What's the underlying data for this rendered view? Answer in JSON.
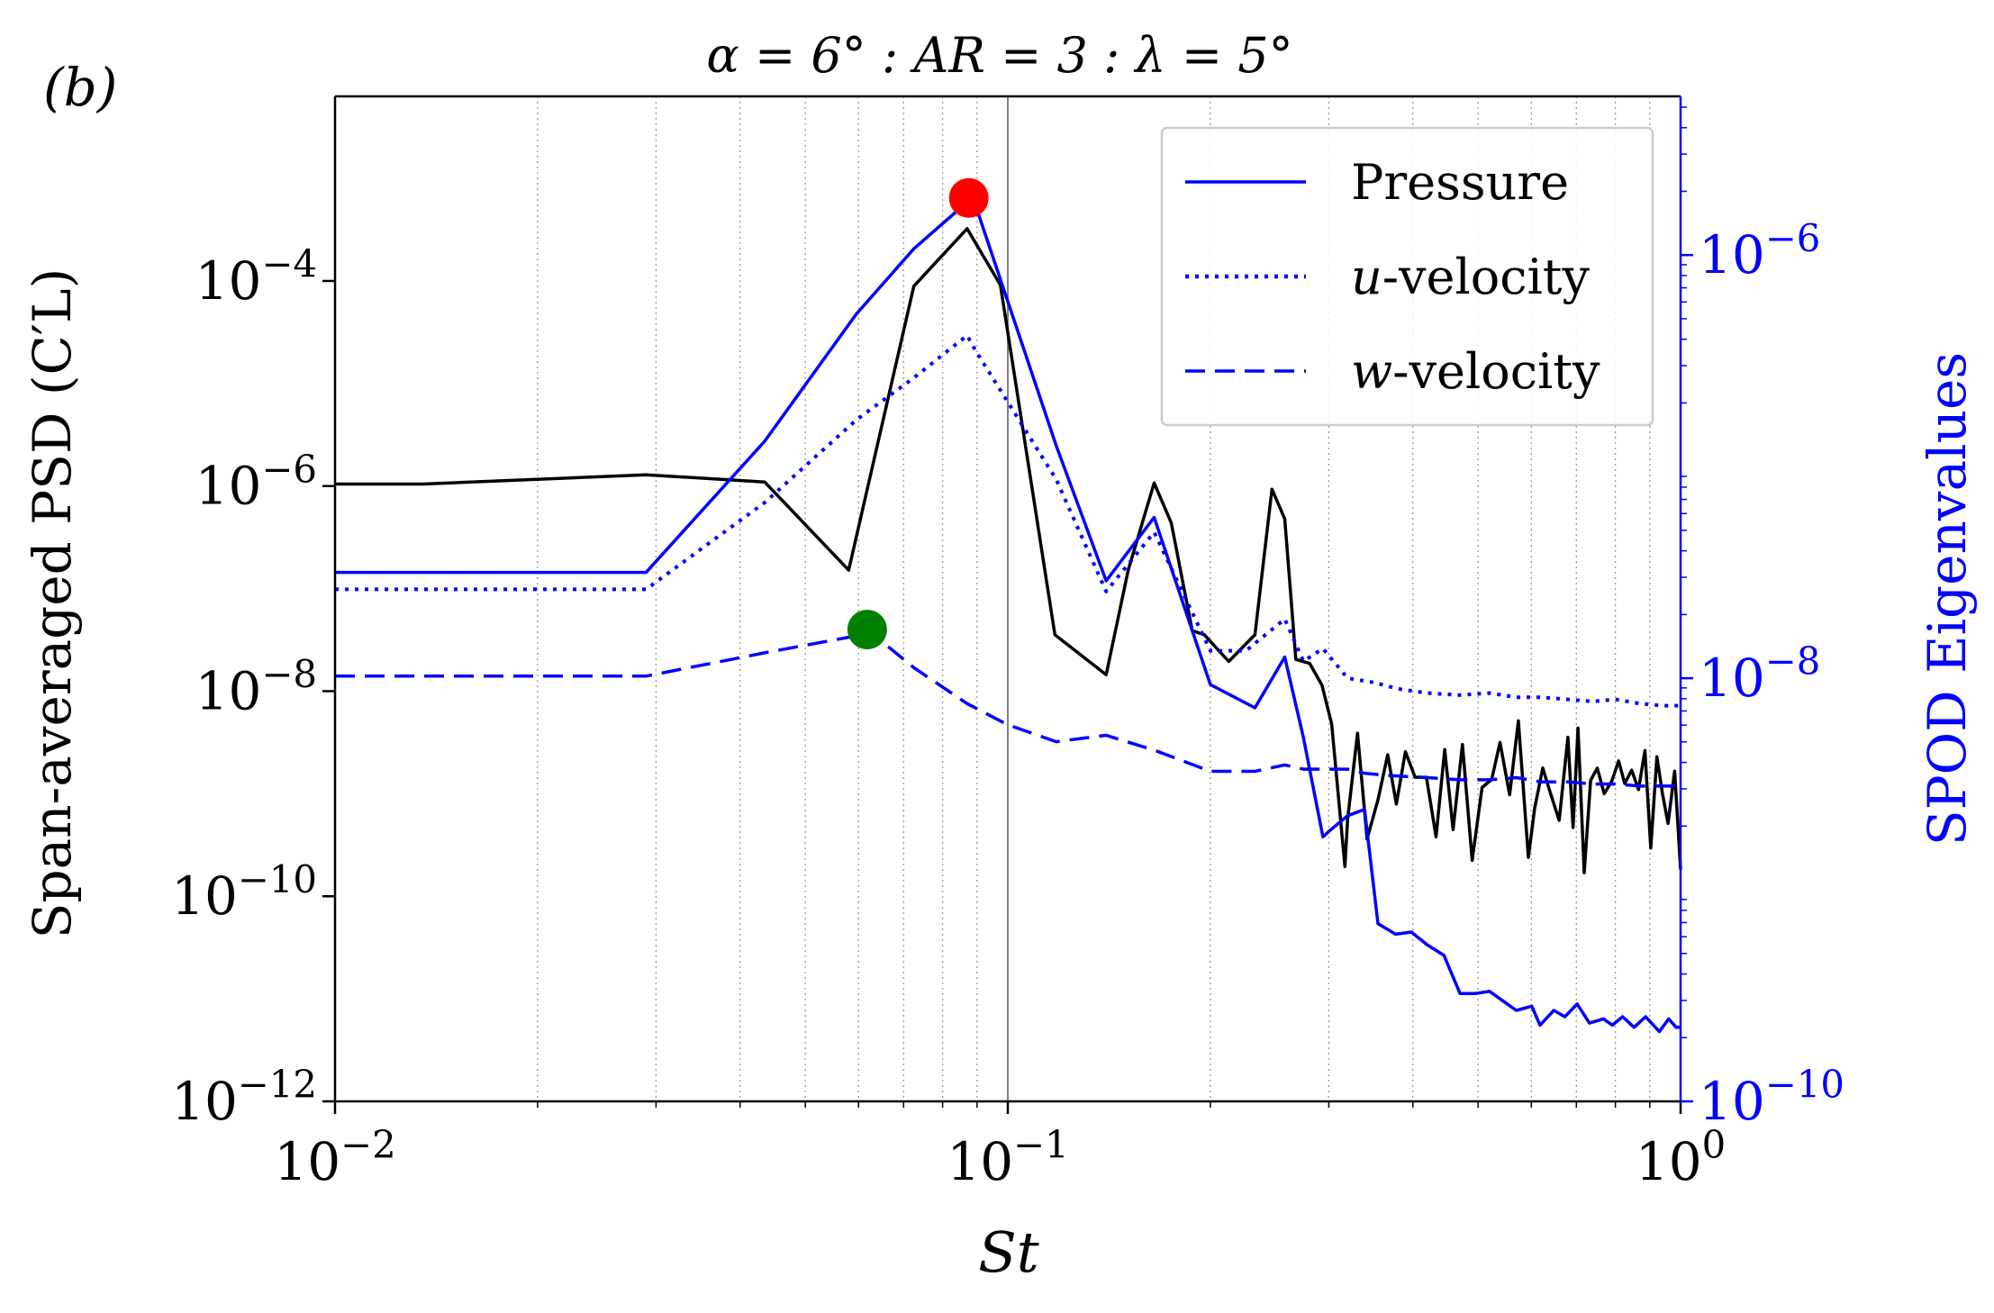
{
  "panel_label": "(b)",
  "chart_data": {
    "type": "line",
    "title": "α = 6° : AR = 3 : λ = 5°",
    "xlabel": "St",
    "ylabel_left": "Span-averaged PSD (C′L)",
    "ylabel_right": "SPOD Eigenvalues",
    "x_scale": "log",
    "xlim": [
      0.01,
      1.0
    ],
    "x_ticks": [
      {
        "value": 0.01,
        "base": "10",
        "exp": "−2"
      },
      {
        "value": 0.1,
        "base": "10",
        "exp": "−1"
      },
      {
        "value": 1.0,
        "base": "10",
        "exp": "0"
      }
    ],
    "left_axis": {
      "scale": "log",
      "ylim_exp": [
        -12,
        -2.2
      ],
      "ticks": [
        {
          "exp_value": -4,
          "base": "10",
          "exp": "−4"
        },
        {
          "exp_value": -6,
          "base": "10",
          "exp": "−6"
        },
        {
          "exp_value": -8,
          "base": "10",
          "exp": "−8"
        },
        {
          "exp_value": -10,
          "base": "10",
          "exp": "−10"
        },
        {
          "exp_value": -12,
          "base": "10",
          "exp": "−12"
        }
      ]
    },
    "right_axis": {
      "scale": "log",
      "color": "#0000ff",
      "ylim_exp": [
        -10,
        -5.25
      ],
      "ticks": [
        {
          "exp_value": -6,
          "base": "10",
          "exp": "−6"
        },
        {
          "exp_value": -8,
          "base": "10",
          "exp": "−8"
        },
        {
          "exp_value": -10,
          "base": "10",
          "exp": "−10"
        }
      ]
    },
    "reference_line_x": 0.1,
    "grid": "vertical minor dotted",
    "legend": {
      "location": "upper right",
      "entries": [
        {
          "label": "Pressure",
          "style": "solid",
          "color": "#0000ff"
        },
        {
          "label": "u-velocity",
          "italic_prefix": "u",
          "suffix": "-velocity",
          "style": "dotted",
          "color": "#0000ff"
        },
        {
          "label": "w-velocity",
          "italic_prefix": "w",
          "suffix": "-velocity",
          "style": "dashed",
          "color": "#0000ff"
        }
      ]
    },
    "series": [
      {
        "name": "Span-averaged PSD",
        "axis": "left",
        "color": "#000000",
        "style": "solid",
        "x": [
          0.01,
          0.0135,
          0.029,
          0.0435,
          0.058,
          0.0725,
          0.087,
          0.0975,
          0.1175,
          0.14,
          0.151,
          0.165,
          0.175,
          0.188,
          0.196,
          0.213,
          0.233,
          0.247,
          0.258,
          0.268,
          0.281,
          0.293,
          0.303,
          0.317,
          0.32,
          0.331,
          0.342,
          0.355,
          0.367,
          0.378,
          0.39,
          0.403,
          0.419,
          0.433,
          0.446,
          0.459,
          0.474,
          0.49,
          0.507,
          0.524,
          0.539,
          0.557,
          0.574,
          0.594,
          0.607,
          0.624,
          0.641,
          0.66,
          0.68,
          0.692,
          0.704,
          0.719,
          0.735,
          0.752,
          0.77,
          0.79,
          0.809,
          0.826,
          0.846,
          0.866,
          0.885,
          0.903,
          0.922,
          0.94,
          0.958,
          0.98,
          1.0
        ],
        "y_exp": [
          -5.98,
          -5.98,
          -5.89,
          -5.96,
          -6.82,
          -4.05,
          -3.49,
          -4.04,
          -7.45,
          -7.84,
          -6.82,
          -5.97,
          -6.36,
          -7.41,
          -7.45,
          -7.71,
          -7.45,
          -6.03,
          -6.32,
          -7.69,
          -7.73,
          -7.94,
          -8.32,
          -9.71,
          -9.25,
          -8.41,
          -9.44,
          -9.06,
          -8.62,
          -9.1,
          -8.59,
          -8.84,
          -8.84,
          -9.42,
          -8.57,
          -9.35,
          -8.52,
          -9.65,
          -8.94,
          -8.86,
          -8.5,
          -9.01,
          -8.29,
          -9.62,
          -9.14,
          -8.75,
          -9.0,
          -9.26,
          -8.45,
          -9.33,
          -8.36,
          -9.77,
          -8.87,
          -8.75,
          -9.0,
          -8.88,
          -8.68,
          -8.9,
          -8.77,
          -8.96,
          -8.58,
          -9.53,
          -8.64,
          -9.0,
          -9.29,
          -8.78,
          -9.74
        ]
      },
      {
        "name": "Pressure",
        "axis": "right",
        "color": "#0000ff",
        "style": "solid",
        "x": [
          0.01,
          0.029,
          0.0435,
          0.0595,
          0.0725,
          0.087,
          0.0875,
          0.089,
          0.118,
          0.14,
          0.165,
          0.2,
          0.233,
          0.258,
          0.275,
          0.294,
          0.301,
          0.32,
          0.339,
          0.355,
          0.377,
          0.398,
          0.42,
          0.445,
          0.47,
          0.496,
          0.52,
          0.547,
          0.57,
          0.601,
          0.618,
          0.648,
          0.673,
          0.702,
          0.732,
          0.768,
          0.792,
          0.82,
          0.853,
          0.887,
          0.93,
          0.96,
          0.985,
          1.0
        ],
        "y_exp": [
          -7.5,
          -7.5,
          -6.88,
          -6.28,
          -5.97,
          -5.75,
          -5.73,
          -5.74,
          -6.9,
          -7.54,
          -7.24,
          -8.03,
          -8.14,
          -7.9,
          -8.28,
          -8.75,
          -8.72,
          -8.65,
          -8.62,
          -9.16,
          -9.21,
          -9.2,
          -9.26,
          -9.31,
          -9.49,
          -9.49,
          -9.48,
          -9.53,
          -9.57,
          -9.55,
          -9.64,
          -9.57,
          -9.6,
          -9.54,
          -9.63,
          -9.61,
          -9.64,
          -9.6,
          -9.65,
          -9.6,
          -9.67,
          -9.61,
          -9.65,
          -9.65
        ]
      },
      {
        "name": "u-velocity",
        "axis": "right",
        "color": "#0000ff",
        "style": "dotted",
        "x": [
          0.01,
          0.029,
          0.0435,
          0.0595,
          0.0725,
          0.087,
          0.0895,
          0.118,
          0.14,
          0.165,
          0.2,
          0.226,
          0.258,
          0.275,
          0.294,
          0.32,
          0.35,
          0.38,
          0.42,
          0.47,
          0.52,
          0.57,
          0.62,
          0.68,
          0.74,
          0.8,
          0.87,
          0.94,
          1.0
        ],
        "y_exp": [
          -7.58,
          -7.58,
          -7.17,
          -6.78,
          -6.58,
          -6.38,
          -6.45,
          -7.06,
          -7.59,
          -7.31,
          -7.87,
          -7.87,
          -7.72,
          -7.92,
          -7.86,
          -8.0,
          -8.02,
          -8.05,
          -8.07,
          -8.08,
          -8.07,
          -8.09,
          -8.09,
          -8.1,
          -8.11,
          -8.1,
          -8.12,
          -8.13,
          -8.13
        ]
      },
      {
        "name": "w-velocity",
        "axis": "right",
        "color": "#0000ff",
        "style": "dashed",
        "x": [
          0.01,
          0.029,
          0.0435,
          0.0595,
          0.0618,
          0.0725,
          0.087,
          0.1,
          0.118,
          0.14,
          0.165,
          0.2,
          0.233,
          0.258,
          0.275,
          0.3,
          0.32,
          0.34,
          0.37,
          0.42,
          0.47,
          0.52,
          0.57,
          0.62,
          0.68,
          0.74,
          0.8,
          0.87,
          0.94,
          1.0
        ],
        "y_exp": [
          -7.99,
          -7.99,
          -7.88,
          -7.8,
          -7.77,
          -7.95,
          -8.12,
          -8.22,
          -8.3,
          -8.27,
          -8.34,
          -8.44,
          -8.44,
          -8.41,
          -8.43,
          -8.43,
          -8.43,
          -8.45,
          -8.46,
          -8.47,
          -8.48,
          -8.48,
          -8.47,
          -8.49,
          -8.49,
          -8.5,
          -8.5,
          -8.51,
          -8.51,
          -8.51
        ]
      }
    ],
    "markers": [
      {
        "name": "pressure-peak",
        "axis": "right",
        "x": 0.0875,
        "y_exp": -5.73,
        "color": "#ff0000"
      },
      {
        "name": "w-velocity-peak",
        "axis": "right",
        "x": 0.0618,
        "y_exp": -7.77,
        "color": "#008000"
      }
    ]
  }
}
